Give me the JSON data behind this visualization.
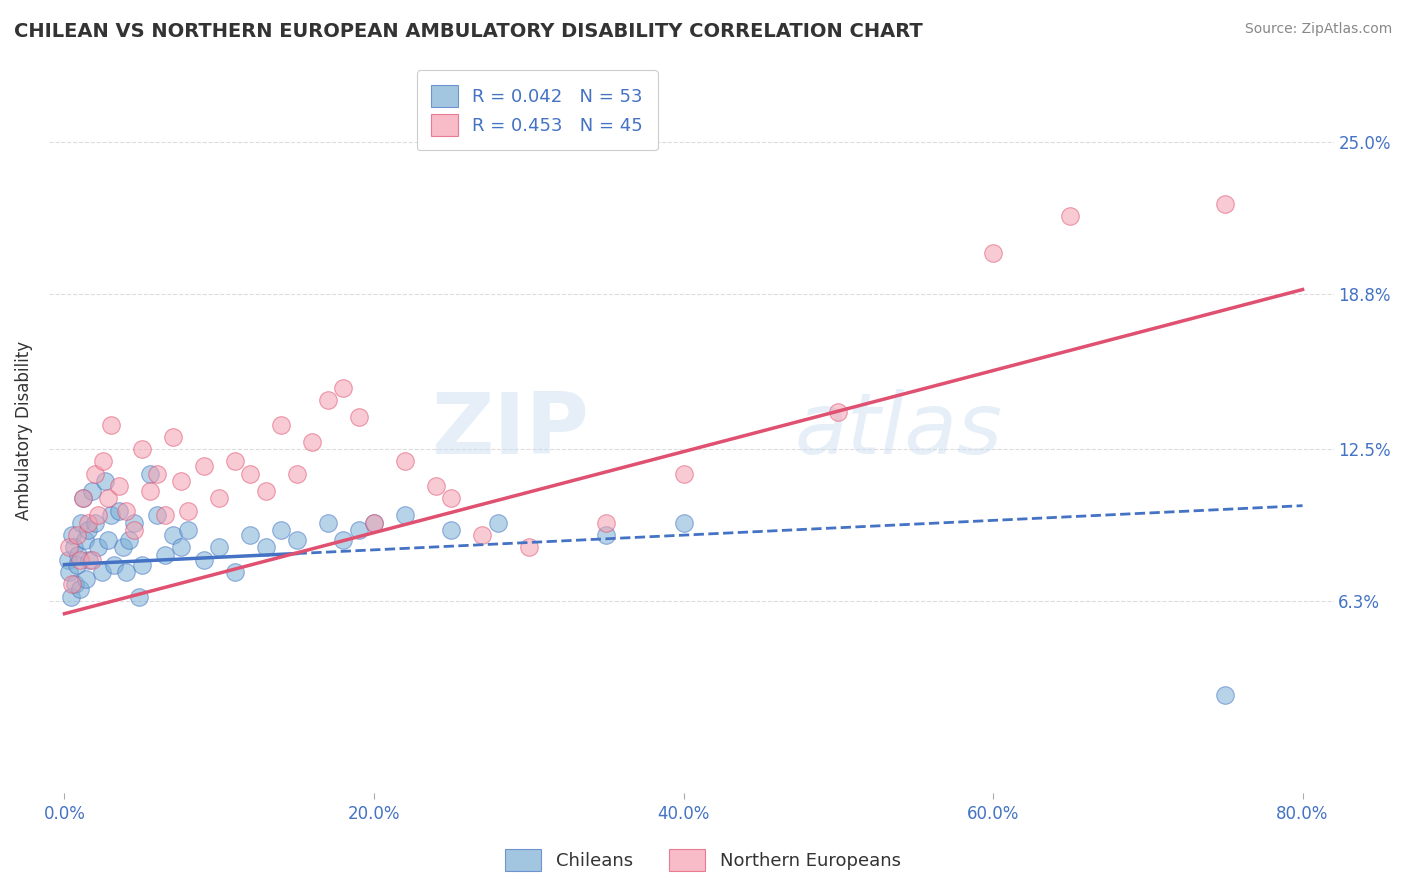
{
  "title": "CHILEAN VS NORTHERN EUROPEAN AMBULATORY DISABILITY CORRELATION CHART",
  "source": "Source: ZipAtlas.com",
  "ylabel": "Ambulatory Disability",
  "xlim": [
    -1.0,
    82.0
  ],
  "ylim": [
    -1.5,
    28.0
  ],
  "yticks": [
    6.3,
    12.5,
    18.8,
    25.0
  ],
  "xticks": [
    0.0,
    20.0,
    40.0,
    60.0,
    80.0
  ],
  "xtick_labels": [
    "0.0%",
    "20.0%",
    "40.0%",
    "60.0%",
    "80.0%"
  ],
  "ytick_labels": [
    "6.3%",
    "12.5%",
    "18.8%",
    "25.0%"
  ],
  "chileans_color": "#7BAFD4",
  "northern_color": "#F4A0B0",
  "trend_chileans_color": "#4472C4",
  "trend_northern_color": "#E05070",
  "legend_r1": "R = 0.042",
  "legend_n1": "N = 53",
  "legend_r2": "R = 0.453",
  "legend_n2": "N = 45",
  "legend_label1": "Chileans",
  "legend_label2": "Northern Europeans",
  "watermark_zip": "ZIP",
  "watermark_atlas": "atlas",
  "background_color": "#FFFFFF",
  "axis_color": "#4472C4",
  "text_color": "#333333",
  "grid_color": "#DDDDDD",
  "chileans_x": [
    0.2,
    0.3,
    0.4,
    0.5,
    0.6,
    0.7,
    0.8,
    0.9,
    1.0,
    1.1,
    1.2,
    1.3,
    1.4,
    1.5,
    1.6,
    1.8,
    2.0,
    2.2,
    2.4,
    2.6,
    2.8,
    3.0,
    3.2,
    3.5,
    3.8,
    4.0,
    4.2,
    4.5,
    4.8,
    5.0,
    5.5,
    6.0,
    6.5,
    7.0,
    7.5,
    8.0,
    9.0,
    10.0,
    11.0,
    12.0,
    13.0,
    14.0,
    15.0,
    17.0,
    18.0,
    19.0,
    20.0,
    22.0,
    25.0,
    28.0,
    35.0,
    40.0,
    75.0
  ],
  "chileans_y": [
    8.0,
    7.5,
    6.5,
    9.0,
    8.5,
    7.0,
    7.8,
    8.2,
    6.8,
    9.5,
    10.5,
    8.8,
    7.2,
    9.2,
    8.0,
    10.8,
    9.5,
    8.5,
    7.5,
    11.2,
    8.8,
    9.8,
    7.8,
    10.0,
    8.5,
    7.5,
    8.8,
    9.5,
    6.5,
    7.8,
    11.5,
    9.8,
    8.2,
    9.0,
    8.5,
    9.2,
    8.0,
    8.5,
    7.5,
    9.0,
    8.5,
    9.2,
    8.8,
    9.5,
    8.8,
    9.2,
    9.5,
    9.8,
    9.2,
    9.5,
    9.0,
    9.5,
    2.5
  ],
  "northern_x": [
    0.3,
    0.5,
    0.8,
    1.0,
    1.2,
    1.5,
    1.8,
    2.0,
    2.2,
    2.5,
    2.8,
    3.0,
    3.5,
    4.0,
    4.5,
    5.0,
    5.5,
    6.0,
    6.5,
    7.0,
    7.5,
    8.0,
    9.0,
    10.0,
    11.0,
    12.0,
    13.0,
    14.0,
    15.0,
    16.0,
    17.0,
    18.0,
    19.0,
    20.0,
    22.0,
    24.0,
    25.0,
    27.0,
    30.0,
    35.0,
    40.0,
    50.0,
    60.0,
    65.0,
    75.0
  ],
  "northern_y": [
    8.5,
    7.0,
    9.0,
    8.0,
    10.5,
    9.5,
    8.0,
    11.5,
    9.8,
    12.0,
    10.5,
    13.5,
    11.0,
    10.0,
    9.2,
    12.5,
    10.8,
    11.5,
    9.8,
    13.0,
    11.2,
    10.0,
    11.8,
    10.5,
    12.0,
    11.5,
    10.8,
    13.5,
    11.5,
    12.8,
    14.5,
    15.0,
    13.8,
    9.5,
    12.0,
    11.0,
    10.5,
    9.0,
    8.5,
    9.5,
    11.5,
    14.0,
    20.5,
    22.0,
    22.5
  ],
  "blue_line_x0": 0.0,
  "blue_line_y0": 7.8,
  "blue_line_x_end": 80.0,
  "blue_line_y_end": 10.2,
  "blue_solid_end_x": 15.0,
  "pink_line_x0": 0.0,
  "pink_line_y0": 5.8,
  "pink_line_x_end": 80.0,
  "pink_line_y_end": 19.0
}
